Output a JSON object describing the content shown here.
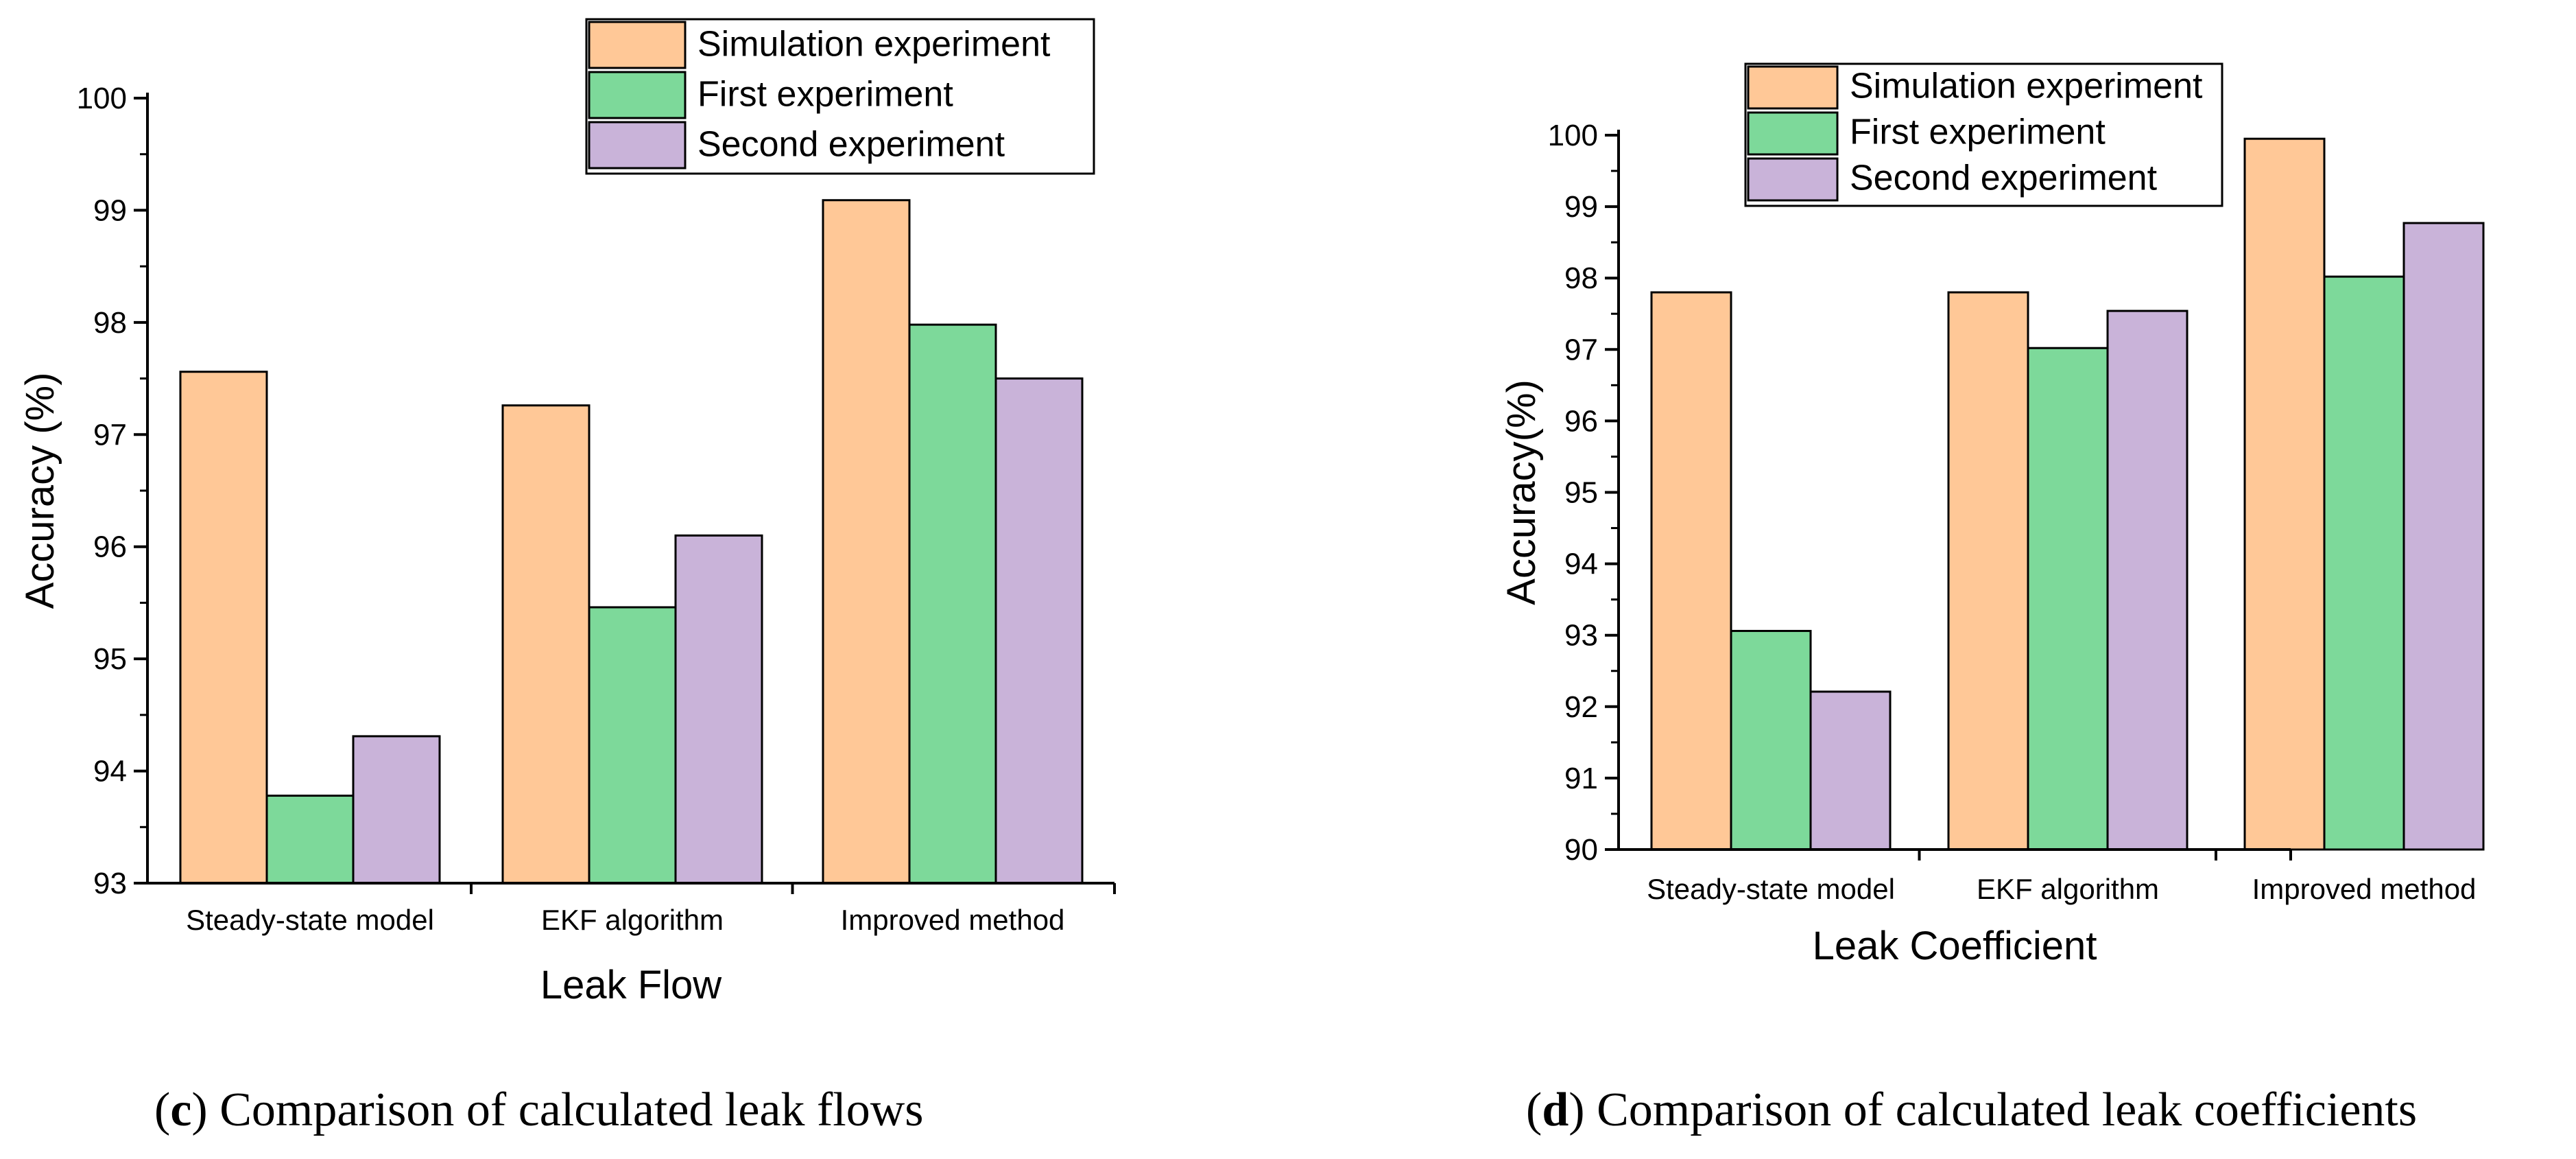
{
  "colors": {
    "simulation": "#FFC897",
    "first": "#7DD99A",
    "second": "#C9B3D9",
    "stroke": "#000000"
  },
  "chart_data": [
    {
      "type": "bar",
      "panel": "c",
      "categories": [
        "Steady-state model",
        "EKF algorithm",
        "Improved method"
      ],
      "series": [
        {
          "name": "Simulation experiment",
          "values": [
            97.56,
            97.26,
            99.09
          ]
        },
        {
          "name": "First experiment",
          "values": [
            93.78,
            95.46,
            97.98
          ]
        },
        {
          "name": "Second experiment",
          "values": [
            94.31,
            96.1,
            97.5
          ]
        }
      ],
      "xlabel": "Leak Flow",
      "ylabel": "Accuracy (%)",
      "ylim": [
        93,
        100
      ],
      "yticks": [
        "93",
        "94",
        "95",
        "96",
        "97",
        "98",
        "99",
        "100"
      ],
      "legend": "top-right",
      "grid": false,
      "caption_label": "c",
      "caption_text": " Comparison of calculated leak flows"
    },
    {
      "type": "bar",
      "panel": "d",
      "categories": [
        "Steady-state model",
        "EKF algorithm",
        "Improved method"
      ],
      "series": [
        {
          "name": "Simulation experiment",
          "values": [
            97.8,
            97.8,
            99.95
          ]
        },
        {
          "name": "First experiment",
          "values": [
            93.06,
            97.02,
            98.02
          ]
        },
        {
          "name": "Second experiment",
          "values": [
            92.21,
            97.54,
            98.77
          ]
        }
      ],
      "xlabel": "Leak Coefficient",
      "ylabel": "Accuracy(%)",
      "ylim": [
        90,
        100
      ],
      "yticks": [
        "90",
        "91",
        "92",
        "93",
        "94",
        "95",
        "96",
        "97",
        "98",
        "99",
        "100"
      ],
      "legend": "top-left",
      "grid": false,
      "caption_label": "d",
      "caption_text": " Comparison of calculated leak coefficients"
    }
  ]
}
